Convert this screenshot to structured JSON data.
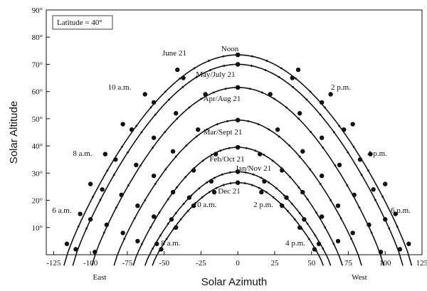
{
  "chart_data": {
    "type": "line",
    "title": "",
    "xlabel": "Solar Azimuth",
    "ylabel": "Solar Altitude",
    "xlim": [
      -130,
      125
    ],
    "ylim": [
      0,
      90
    ],
    "x_ticks": [
      "-125",
      "-100",
      "-75",
      "-50",
      "-25",
      "0",
      "25",
      "50",
      "75",
      "100",
      "125"
    ],
    "y_ticks": [
      "10°",
      "20°",
      "30°",
      "40°",
      "50°",
      "60°",
      "70°",
      "80°",
      "90°"
    ],
    "annotation": "Latitude = 40°",
    "noon_label": "Noon",
    "directions": {
      "east": "East",
      "west": "West"
    },
    "series": [
      {
        "name": "June 21",
        "noon_altitude": 73.5,
        "azimuth_range": [
          -118,
          118
        ],
        "points": [
          [
            -116,
            4
          ],
          [
            -107,
            15
          ],
          [
            -100,
            26
          ],
          [
            -90,
            37
          ],
          [
            -78,
            48
          ],
          [
            -63,
            59
          ],
          [
            -41,
            68
          ],
          [
            0,
            73.5
          ]
        ]
      },
      {
        "name": "May/July 21",
        "noon_altitude": 70,
        "azimuth_range": [
          -112,
          112
        ],
        "points": [
          [
            -110,
            2
          ],
          [
            -100,
            13
          ],
          [
            -92,
            24
          ],
          [
            -83,
            35
          ],
          [
            -72,
            46
          ],
          [
            -57,
            56
          ],
          [
            -37,
            65
          ],
          [
            0,
            70
          ]
        ]
      },
      {
        "name": "Apr/Aug 21",
        "noon_altitude": 61.5,
        "azimuth_range": [
          -99,
          99
        ],
        "points": [
          [
            -97,
            1
          ],
          [
            -89,
            11
          ],
          [
            -79,
            22
          ],
          [
            -69,
            33
          ],
          [
            -57,
            43
          ],
          [
            -42,
            52
          ],
          [
            -22,
            59
          ],
          [
            0,
            61.5
          ]
        ]
      },
      {
        "name": "Mar/Sept 21",
        "noon_altitude": 49.5,
        "azimuth_range": [
          -84,
          84
        ],
        "points": [
          [
            -78,
            8
          ],
          [
            -68,
            18
          ],
          [
            -57,
            29
          ],
          [
            -44,
            38
          ],
          [
            -27,
            46
          ],
          [
            0,
            49.5
          ]
        ]
      },
      {
        "name": "Feb/Oct 21",
        "noon_altitude": 39.5,
        "azimuth_range": [
          -71,
          71
        ],
        "points": [
          [
            -68,
            5
          ],
          [
            -57,
            14
          ],
          [
            -44,
            23
          ],
          [
            -30,
            31
          ],
          [
            -15,
            37
          ],
          [
            0,
            39.5
          ]
        ]
      },
      {
        "name": "Jan/Nov 21",
        "noon_altitude": 30.5,
        "azimuth_range": [
          -63,
          63
        ],
        "points": [
          [
            -55,
            4
          ],
          [
            -45,
            13
          ],
          [
            -33,
            21
          ],
          [
            -18,
            27
          ],
          [
            0,
            30.5
          ]
        ]
      },
      {
        "name": "Dec 21",
        "noon_altitude": 26.5,
        "azimuth_range": [
          -58,
          58
        ],
        "points": [
          [
            -52,
            2
          ],
          [
            -42,
            10
          ],
          [
            -30,
            18
          ],
          [
            -16,
            23
          ],
          [
            0,
            26.5
          ]
        ]
      }
    ],
    "hour_labels": [
      {
        "text": "6 a.m.",
        "series": "June 21",
        "az": -116
      },
      {
        "text": "8 a.m.",
        "series": "June 21",
        "az": -100
      },
      {
        "text": "10 a.m.",
        "series": "June 21",
        "az": -78
      },
      {
        "text": "2 p.m.",
        "series": "June 21",
        "az": 78
      },
      {
        "text": "4 p.m.",
        "series": "June 21",
        "az": 100
      },
      {
        "text": "6 p.m.",
        "series": "June 21",
        "az": 116
      },
      {
        "text": "8 a.m.",
        "series": "Dec 21",
        "az": -42
      },
      {
        "text": "10 a.m.",
        "series": "Dec 21",
        "az": -16
      },
      {
        "text": "2 p.m.",
        "series": "Dec 21",
        "az": 16
      },
      {
        "text": "4 p.m.",
        "series": "Dec 21",
        "az": 42
      }
    ]
  }
}
